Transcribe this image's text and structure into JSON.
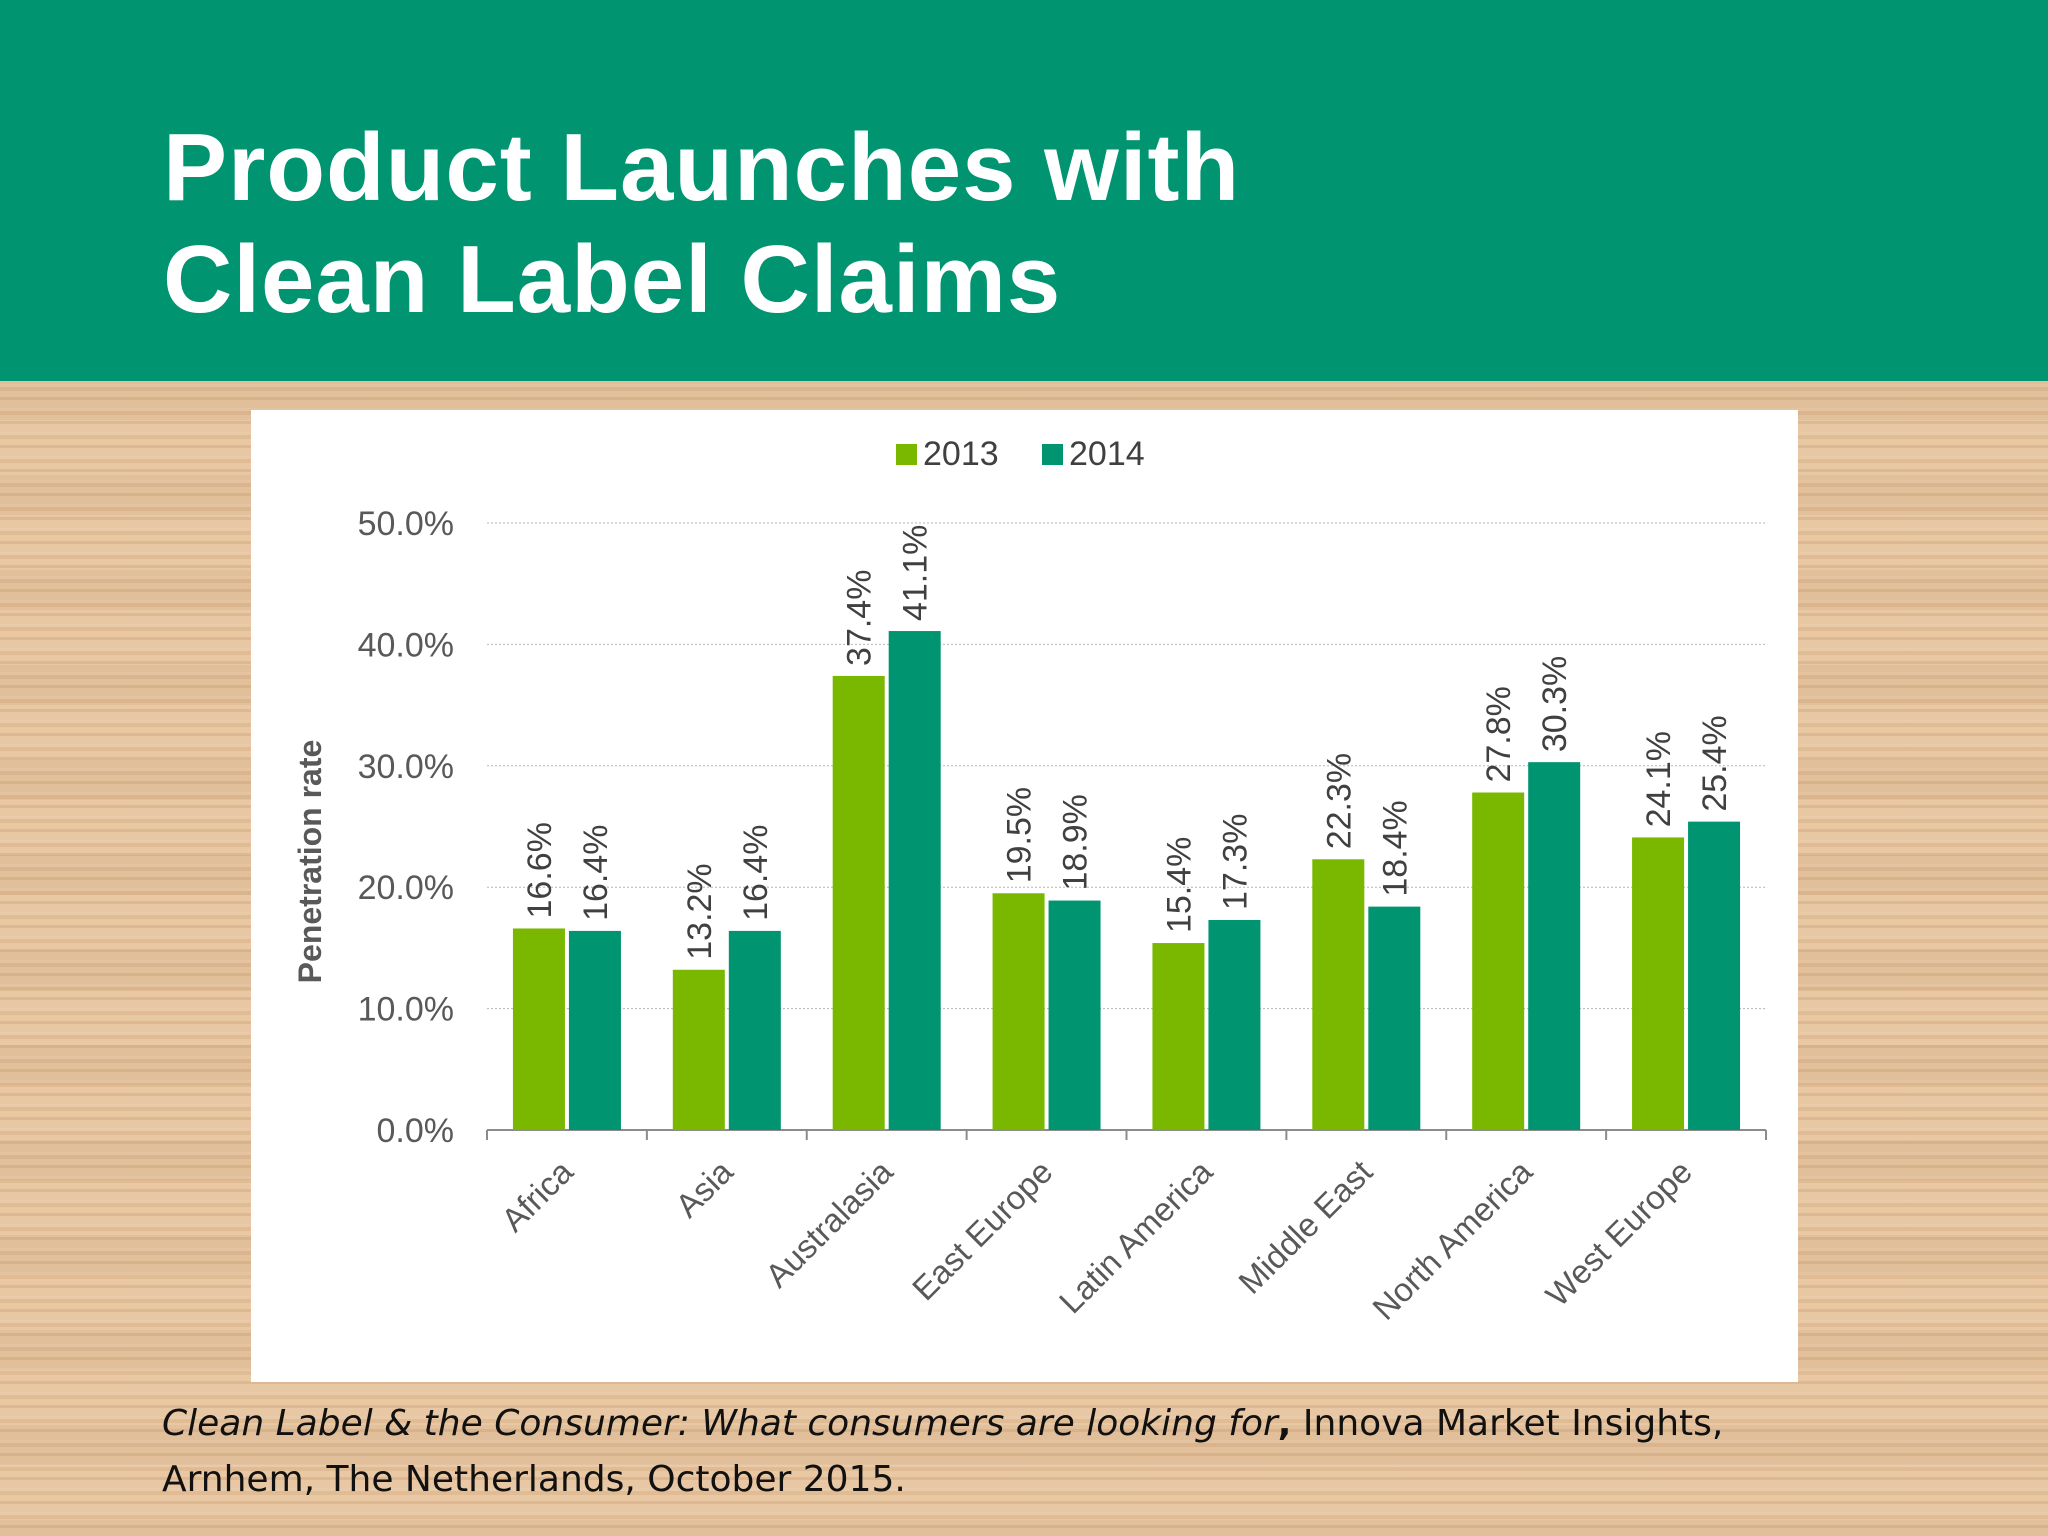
{
  "slide": {
    "title_line1": "Product Launches with",
    "title_line2": "Clean Label Claims",
    "header_color": "#009470"
  },
  "caption": {
    "source_title": "Clean Label & the Consumer: What consumers are looking for",
    "separator": ",",
    "publisher_line1": " Innova Market Insights,",
    "publisher_line2": "Arnhem, The Netherlands, October 2015."
  },
  "chart_data": {
    "type": "bar",
    "title": "",
    "xlabel": "",
    "ylabel": "Penetration rate",
    "categories": [
      "Africa",
      "Asia",
      "Australasia",
      "East Europe",
      "Latin America",
      "Middle East",
      "North America",
      "West Europe"
    ],
    "series": [
      {
        "name": "2013",
        "color": "#7ab800",
        "values": [
          16.6,
          13.2,
          37.4,
          19.5,
          15.4,
          22.3,
          27.8,
          24.1
        ],
        "labels": [
          "16.6%",
          "13.2%",
          "37.4%",
          "19.5%",
          "15.4%",
          "22.3%",
          "27.8%",
          "24.1%"
        ]
      },
      {
        "name": "2014",
        "color": "#009470",
        "values": [
          16.4,
          16.4,
          41.1,
          18.9,
          17.3,
          18.4,
          30.3,
          25.4
        ],
        "labels": [
          "16.4%",
          "16.4%",
          "41.1%",
          "18.9%",
          "17.3%",
          "18.4%",
          "30.3%",
          "25.4%"
        ]
      }
    ],
    "ylim": [
      0,
      50
    ],
    "yticks": [
      "0.0%",
      "10.0%",
      "20.0%",
      "30.0%",
      "40.0%",
      "50.0%"
    ],
    "grid": true,
    "legend": "top-center",
    "data_labels": "rotated-vertical"
  }
}
